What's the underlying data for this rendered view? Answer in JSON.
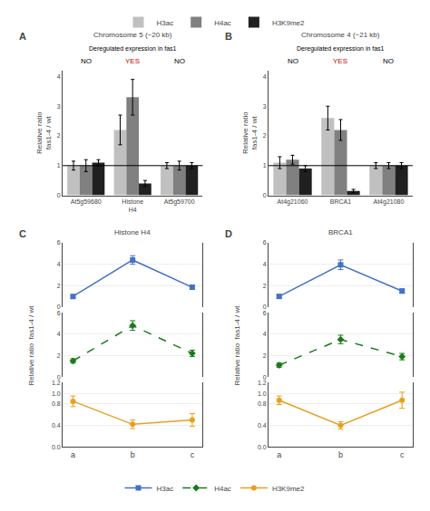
{
  "chart_data": [
    {
      "type": "bar",
      "title": "A",
      "subtitle": "Chromosome 5 (~20 kb)",
      "categories": [
        "At5g59680",
        "Histone\nH4",
        "At5g59700"
      ],
      "series": [
        {
          "name": "H3ac",
          "color": "#c0c0c0",
          "values": [
            1.0,
            2.2,
            1.0
          ],
          "errors": [
            0.15,
            0.5,
            0.1
          ]
        },
        {
          "name": "H4ac",
          "color": "#808080",
          "values": [
            1.0,
            3.3,
            1.0
          ],
          "errors": [
            0.2,
            0.6,
            0.15
          ]
        },
        {
          "name": "H3K9me2",
          "color": "#202020",
          "values": [
            1.1,
            0.4,
            1.0
          ],
          "errors": [
            0.1,
            0.1,
            0.1
          ]
        }
      ],
      "ylabel": "Relative ratio\nfas1-4 / wt",
      "ylim": [
        0,
        4.2
      ],
      "yticks": [
        0,
        1,
        2,
        3,
        4
      ],
      "reference_line": 1.0,
      "grid": false,
      "legend": "top",
      "annotations": [
        {
          "text": "Deregulated expression in fas1"
        },
        {
          "text": "NO",
          "category": "At5g59680",
          "color": "#000000"
        },
        {
          "text": "YES",
          "category": "Histone\nH4",
          "color": "#cc0000"
        },
        {
          "text": "NO",
          "category": "At5g59700",
          "color": "#000000"
        }
      ]
    },
    {
      "type": "bar",
      "title": "B",
      "subtitle": "Chromosome 4 (~21 kb)",
      "categories": [
        "At4g21060",
        "BRCA1",
        "At4g21080"
      ],
      "series": [
        {
          "name": "H3ac",
          "color": "#c0c0c0",
          "values": [
            1.1,
            2.6,
            1.0
          ],
          "errors": [
            0.2,
            0.4,
            0.1
          ]
        },
        {
          "name": "H4ac",
          "color": "#808080",
          "values": [
            1.2,
            2.2,
            1.0
          ],
          "errors": [
            0.15,
            0.35,
            0.1
          ]
        },
        {
          "name": "H3K9me2",
          "color": "#202020",
          "values": [
            0.9,
            0.15,
            1.0
          ],
          "errors": [
            0.1,
            0.05,
            0.1
          ]
        }
      ],
      "ylabel": "Relative ratio\nfas1-4 / wt",
      "ylim": [
        0,
        4.2
      ],
      "yticks": [
        0,
        1,
        2,
        3,
        4
      ],
      "reference_line": 1.0,
      "grid": false,
      "legend": "top",
      "annotations": [
        {
          "text": "Deregulated expression in fas1"
        },
        {
          "text": "NO",
          "category": "At4g21060",
          "color": "#000000"
        },
        {
          "text": "YES",
          "category": "BRCA1",
          "color": "#cc0000"
        },
        {
          "text": "NO",
          "category": "At4g21080",
          "color": "#000000"
        }
      ]
    },
    {
      "type": "line",
      "title": "C",
      "subtitle": "Histone H4",
      "categories": [
        "a",
        "b",
        "c"
      ],
      "ylabel": "Relative ratio  fas1-4 / wt",
      "grid": true,
      "legend": "bottom",
      "series": [
        {
          "name": "H3ac",
          "color": "#4472c4",
          "marker": "square",
          "line_style": "solid",
          "values": [
            1.0,
            4.4,
            1.85
          ],
          "errors": [
            0.15,
            0.4,
            0.2
          ],
          "ylim": [
            0,
            6
          ],
          "yticks": [
            0,
            2,
            4,
            6
          ]
        },
        {
          "name": "H4ac",
          "color": "#1a7a1a",
          "marker": "diamond",
          "line_style": "dash",
          "values": [
            1.5,
            4.8,
            2.2
          ],
          "errors": [
            0.2,
            0.45,
            0.3
          ],
          "ylim": [
            0,
            6
          ],
          "yticks": [
            0,
            2,
            4,
            6
          ]
        },
        {
          "name": "H3K9me2",
          "color": "#e8a020",
          "marker": "circle",
          "line_style": "solid",
          "values": [
            0.85,
            0.42,
            0.5
          ],
          "errors": [
            0.1,
            0.08,
            0.12
          ],
          "ylim": [
            0,
            1.2
          ],
          "yticks": [
            {
              "value": 0,
              "label": "0.0"
            },
            0.4,
            0.8,
            {
              "value": 1.0,
              "label": "1.0"
            },
            1.2
          ]
        }
      ]
    },
    {
      "type": "line",
      "title": "D",
      "subtitle": "BRCA1",
      "categories": [
        "a",
        "b",
        "c"
      ],
      "ylabel": "Relative ratio  fas1-4 / wt",
      "grid": true,
      "legend": "bottom",
      "series": [
        {
          "name": "H3ac",
          "color": "#4472c4",
          "marker": "square",
          "line_style": "solid",
          "values": [
            1.0,
            3.95,
            1.5
          ],
          "errors": [
            0.15,
            0.45,
            0.2
          ],
          "ylim": [
            0,
            6
          ],
          "yticks": [
            0,
            2,
            4,
            6
          ]
        },
        {
          "name": "H4ac",
          "color": "#1a7a1a",
          "marker": "diamond",
          "line_style": "dash",
          "values": [
            1.1,
            3.5,
            1.9
          ],
          "errors": [
            0.2,
            0.4,
            0.3
          ],
          "ylim": [
            0,
            6
          ],
          "yticks": [
            0,
            2,
            4,
            6
          ]
        },
        {
          "name": "H3K9me2",
          "color": "#e8a020",
          "marker": "circle",
          "line_style": "solid",
          "values": [
            0.87,
            0.4,
            0.87
          ],
          "errors": [
            0.08,
            0.07,
            0.15
          ],
          "ylim": [
            0,
            1.2
          ],
          "yticks": [
            {
              "value": 0,
              "label": "0.0"
            },
            0.4,
            0.8,
            {
              "value": 1.0,
              "label": "1.0"
            },
            1.2
          ]
        }
      ]
    }
  ]
}
